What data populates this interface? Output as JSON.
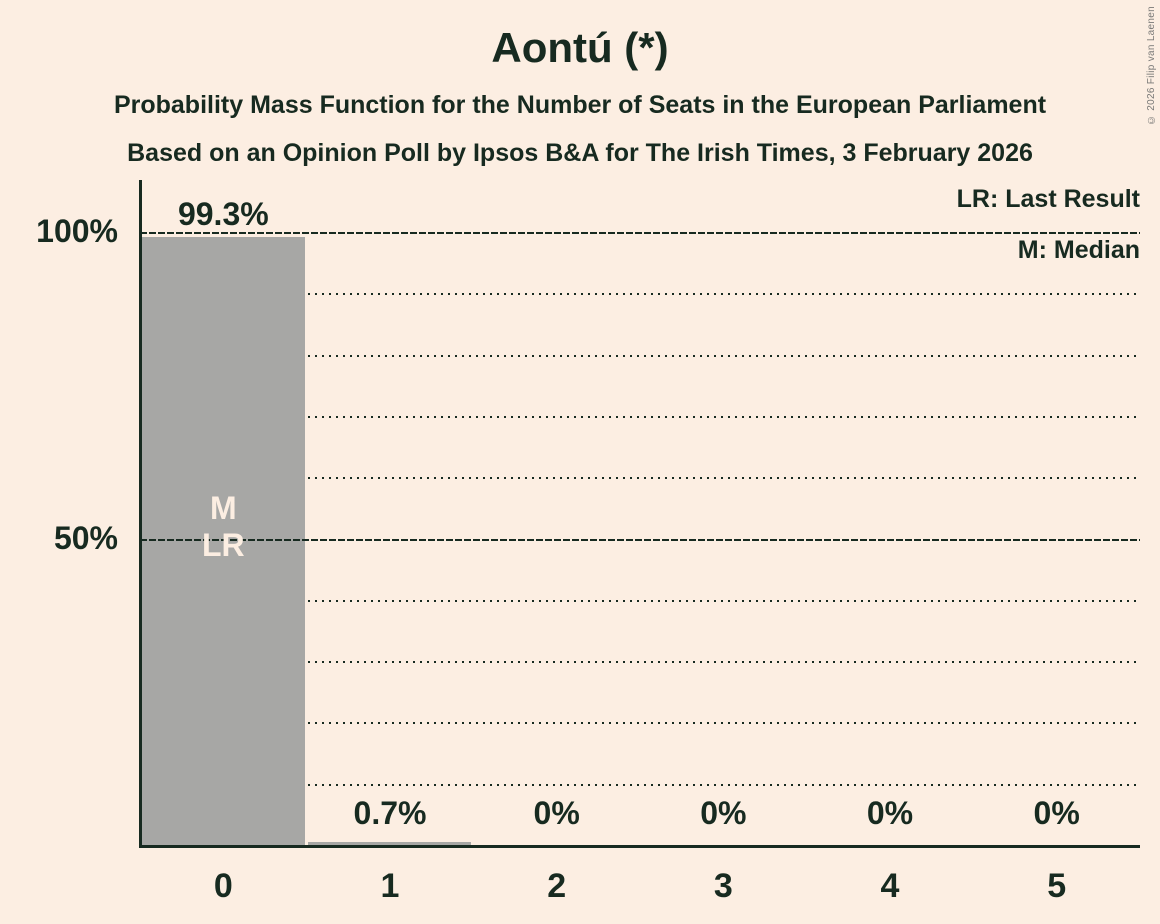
{
  "header": {
    "title": "Aontú (*)",
    "subtitle1": "Probability Mass Function for the Number of Seats in the European Parliament",
    "subtitle2": "Based on an Opinion Poll by Ipsos B&A for The Irish Times, 3 February 2026"
  },
  "legend": {
    "last_result": "LR: Last Result",
    "median": "M: Median"
  },
  "copyright": "© 2026 Filip van Laenen",
  "colors": {
    "background": "#FCEEE2",
    "text": "#172A20",
    "bar": "#A7A7A5",
    "bar_annotation_text": "#FCEEE2",
    "copyright_text": "#7A7A78"
  },
  "chart_data": {
    "type": "bar",
    "title": "Aontú (*)",
    "categories": [
      "0",
      "1",
      "2",
      "3",
      "4",
      "5"
    ],
    "values": [
      99.3,
      0.7,
      0,
      0,
      0,
      0
    ],
    "value_labels": [
      "99.3%",
      "0.7%",
      "0%",
      "0%",
      "0%",
      "0%"
    ],
    "xlabel": "",
    "ylabel": "",
    "ylim": [
      0,
      100
    ],
    "y_tick_labels": [
      {
        "text": "100%",
        "value": 100
      },
      {
        "text": "50%",
        "value": 50
      }
    ],
    "gridlines": {
      "solid_at": [
        50,
        100
      ],
      "dotted_every": 10
    },
    "legend_position": "top-right",
    "annotations": [
      {
        "bar_index": 0,
        "lines": [
          "M",
          "LR"
        ]
      }
    ]
  }
}
